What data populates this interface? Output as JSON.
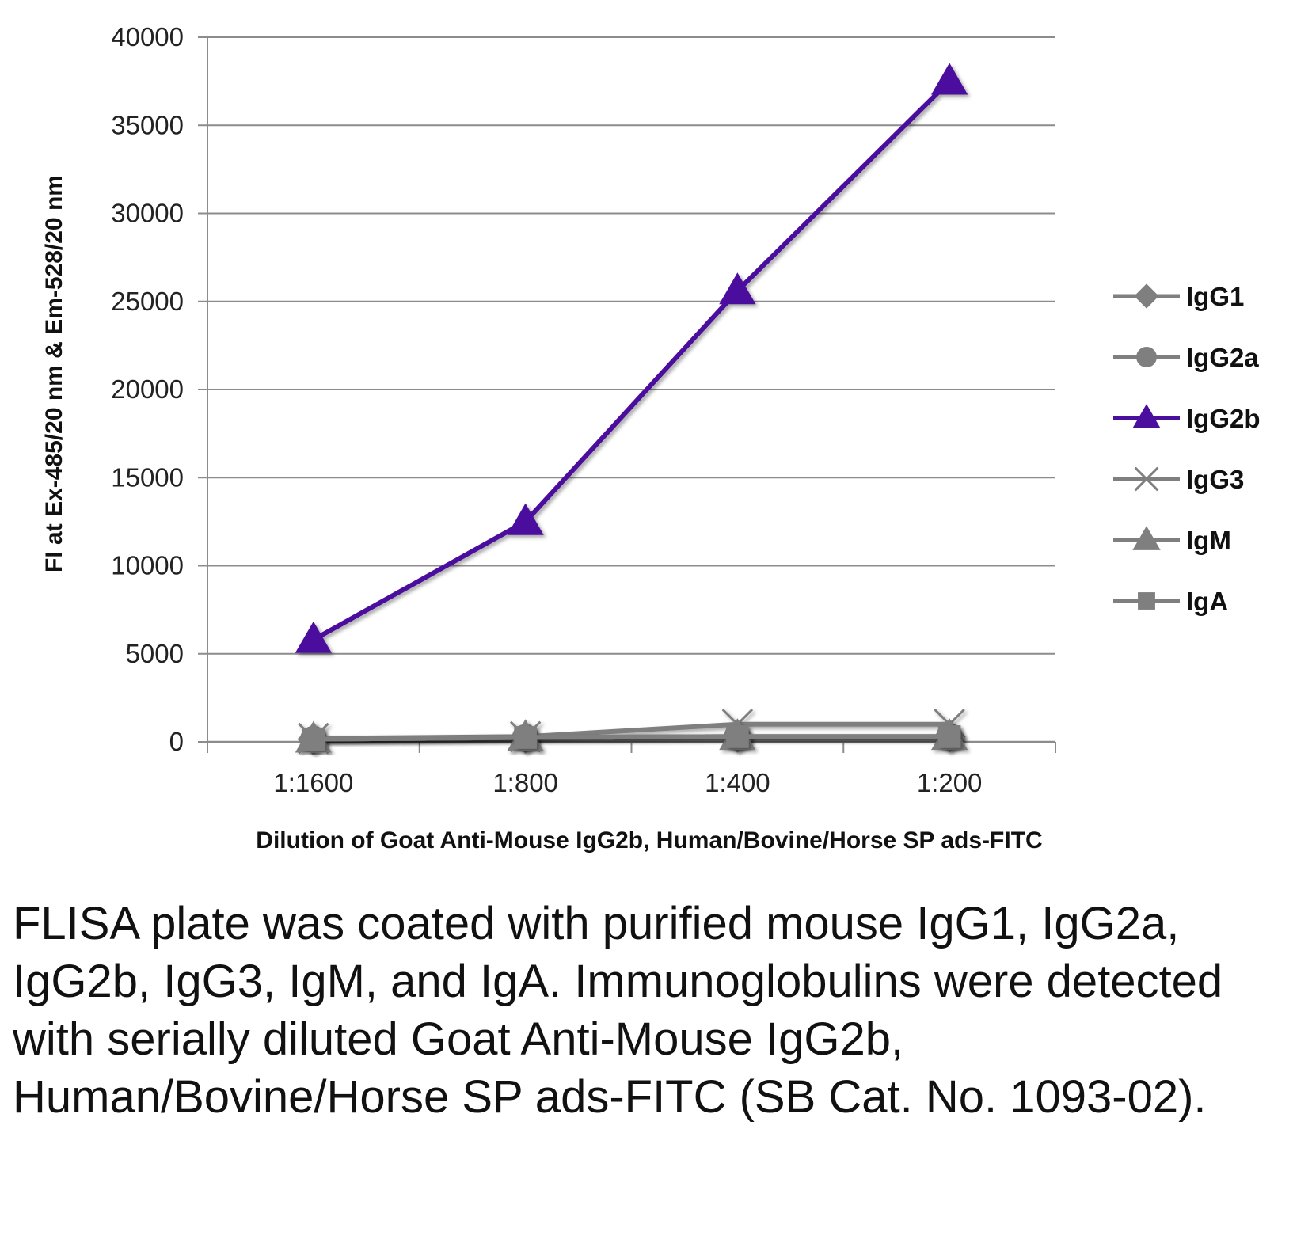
{
  "chart_data": {
    "type": "line",
    "xlabel": "Dilution of Goat Anti-Mouse IgG2b, Human/Bovine/Horse SP ads-FITC",
    "ylabel": "FI at Ex-485/20 nm & Em-528/20 nm",
    "categories": [
      "1:1600",
      "1:800",
      "1:400",
      "1:200"
    ],
    "ylim": [
      0,
      40000
    ],
    "yticks": [
      "0",
      "5000",
      "10000",
      "15000",
      "20000",
      "25000",
      "30000",
      "35000",
      "40000"
    ],
    "grid": true,
    "legend_position": "right",
    "series": [
      {
        "name": "IgG1",
        "marker": "diamond",
        "color": "#7f7f7f",
        "values": [
          150,
          250,
          300,
          300
        ]
      },
      {
        "name": "IgG2a",
        "marker": "circle",
        "color": "#7f7f7f",
        "values": [
          150,
          250,
          300,
          300
        ]
      },
      {
        "name": "IgG2b",
        "marker": "triangle",
        "color": "#4b0f9e",
        "values": [
          5800,
          12500,
          25600,
          37500
        ]
      },
      {
        "name": "IgG3",
        "marker": "x",
        "color": "#7f7f7f",
        "values": [
          200,
          300,
          1000,
          1000
        ]
      },
      {
        "name": "IgM",
        "marker": "triangle",
        "color": "#7f7f7f",
        "values": [
          150,
          250,
          300,
          300
        ]
      },
      {
        "name": "IgA",
        "marker": "square",
        "color": "#7f7f7f",
        "values": [
          150,
          250,
          300,
          300
        ]
      }
    ]
  },
  "caption": "FLISA plate was coated with purified mouse IgG1, IgG2a, IgG2b, IgG3, IgM, and IgA. Immunoglobulins were detected with serially diluted Goat Anti-Mouse IgG2b, Human/Bovine/Horse SP ads-FITC (SB Cat. No. 1093-02)."
}
